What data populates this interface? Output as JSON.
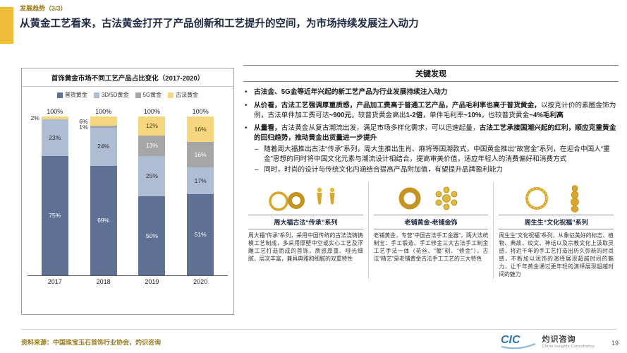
{
  "header": {
    "eyebrow": "发展趋势（3/3）",
    "title": "从黄金工艺看来，古法黄金打开了产品创新和工艺提升的空间，为市场持续发展注入动力"
  },
  "chart": {
    "title": "首饰黄金市场不同工艺产品占比变化（2017-2020）"
  },
  "chart_data": {
    "type": "bar",
    "stacked": true,
    "title": "首饰黄金市场不同工艺产品占比变化（2017-2020）",
    "categories": [
      "2017",
      "2018",
      "2019",
      "2020"
    ],
    "series": [
      {
        "name": "普货黄金",
        "color": "#5e7195",
        "label_color": "#ffffff",
        "values": [
          75,
          69,
          50,
          51
        ]
      },
      {
        "name": "3D/5D黄金",
        "color": "#aebdd4",
        "label_color": "#2e2e2e",
        "values": [
          23,
          24,
          25,
          17
        ]
      },
      {
        "name": "5G黄金",
        "color": "#a6a6a6",
        "label_color": "#ffffff",
        "values": [
          0,
          1,
          13,
          16
        ]
      },
      {
        "name": "古法黄金",
        "color": "#f5d77f",
        "label_color": "#4a3b10",
        "values": [
          2,
          6,
          12,
          16
        ]
      }
    ],
    "bar_totals": [
      "100%",
      "100%",
      "100%",
      "100%"
    ],
    "ylim": [
      0,
      100
    ],
    "value_suffix": "%",
    "legend_position": "top",
    "grid": false
  },
  "findings": {
    "title": "关键发现",
    "bullets": [
      {
        "segments": [
          {
            "text": "古法金、5G金等近年兴起的新工艺产品为行业发展持续注入动力",
            "bold": true
          }
        ],
        "sub": []
      },
      {
        "segments": [
          {
            "text": "从价看，古法工艺强调厚重质感，产品加工费高于普通工艺产品，产品毛利率也高于普货黄金，",
            "bold": true
          },
          {
            "text": "以按克计价的素圈金饰为例，古法单件加工费可达",
            "bold": false
          },
          {
            "text": "~900元",
            "bold": true
          },
          {
            "text": "，较普货黄金高出",
            "bold": false
          },
          {
            "text": "1-2倍",
            "bold": true
          },
          {
            "text": "，单件毛利率",
            "bold": false
          },
          {
            "text": "~10%",
            "bold": true
          },
          {
            "text": "，也较普货黄金",
            "bold": false
          },
          {
            "text": "~4%毛利高",
            "bold": true
          }
        ],
        "sub": []
      },
      {
        "segments": [
          {
            "text": "从量看，",
            "bold": true
          },
          {
            "text": "古法黄金从复古潮流出发，满足市场多样化需求，可以迅速起量，",
            "bold": false
          },
          {
            "text": "古法工艺承接国潮兴起的红利，顺应克重黄金的回归趋势，推动黄金出货量进一步提升",
            "bold": true
          }
        ],
        "sub": [
          "随着周大福推出古法“传承”系列，周大生推出生肖、麻将等国潮款式，中国黄金推出“故宫金”系列，在迎合中国人“重金”思想的同时将中国文化元素与潮流设计相结合，提高审美价值，适应年轻人的消费偏好和消费方式",
          "同时，时尚的设计与传统文化内涵结合提高产品附加值，有望提升品牌盈利能力"
        ]
      }
    ]
  },
  "products": [
    {
      "title": "周大福古法“传承”系列",
      "body": "周大福“传承”系列，采用中国传统的古法浇铸铸模工艺制成，多采用厚壁中空或实心工艺及浮雕工艺打造而成的首饰，质感厚重、哑光细腻，层次丰富，兼具典雅和细腻的双重特性",
      "icon": "gold-rings-earrings"
    },
    {
      "title": "老铺黄金-老铺金饰",
      "body": "老铺黄金，专营“中国古法手工金器”，两大法统制宝：手工锻造、手工修金三大古法手工制金工艺手法一体（花丝、“錾”刻、“修金”），古法“精艺”是老铺黄金古法手工工艺的三大特色",
      "icon": "gold-ring-pendant"
    },
    {
      "title": "周生生“文化祝福”系列",
      "body": "周生生“文化祝福”系列，从象征美好的标志、植物、典故、纹文、神话以及宗教文化上汲取灵感，将近千年的手工艺打造出历久弥新的时尚感，不断加以润饰的演绎展现超越时间的魅力，让千年黄金通过更年轻的演绎展现超越时间的魅力",
      "icon": "gold-bangle-charm"
    }
  ],
  "footer": {
    "source": "资料来源：中国珠宝玉石首饰行业协会，灼识咨询",
    "page_number": "19",
    "logo": {
      "cic": "CIC",
      "name": "灼识咨询",
      "tagline": "China Insights Consultancy"
    }
  }
}
